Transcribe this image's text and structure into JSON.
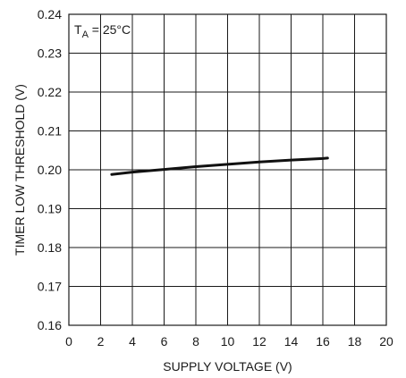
{
  "chart_data": {
    "type": "line",
    "title": "",
    "xlabel": "SUPPLY VOLTAGE (V)",
    "ylabel": "TIMER LOW THRESHOLD (V)",
    "xlim": [
      0,
      20
    ],
    "ylim": [
      0.16,
      0.24
    ],
    "x_ticks": [
      0,
      2,
      4,
      6,
      8,
      10,
      12,
      14,
      16,
      18,
      20
    ],
    "x_tick_labels": [
      "0",
      "2",
      "4",
      "6",
      "8",
      "10",
      "12",
      "14",
      "16",
      "18",
      "20"
    ],
    "y_ticks": [
      0.16,
      0.17,
      0.18,
      0.19,
      0.2,
      0.21,
      0.22,
      0.23,
      0.24
    ],
    "y_tick_labels": [
      "0.16",
      "0.17",
      "0.18",
      "0.19",
      "0.20",
      "0.21",
      "0.22",
      "0.23",
      "0.24"
    ],
    "grid": true,
    "annotation": {
      "main": "T",
      "sub": "A",
      "rest": " = 25°C"
    },
    "series": [
      {
        "x": [
          2.7,
          4,
          6,
          8,
          10,
          12,
          14,
          16,
          16.3
        ],
        "y": [
          0.1988,
          0.1994,
          0.2001,
          0.2008,
          0.2014,
          0.202,
          0.2025,
          0.2029,
          0.203
        ]
      }
    ]
  }
}
